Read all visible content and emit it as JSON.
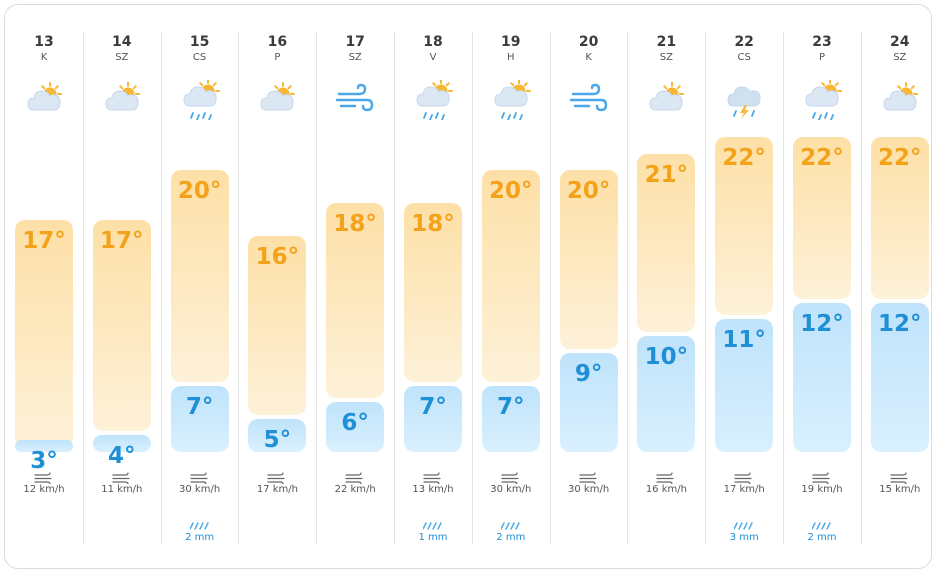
{
  "chart_data": {
    "type": "bar",
    "categories": [
      "13",
      "14",
      "15",
      "16",
      "17",
      "18",
      "19",
      "20",
      "21",
      "22",
      "23",
      "24"
    ],
    "ylim": [
      3,
      22
    ],
    "days": [
      {
        "date": "13",
        "dow": "K",
        "icon": "partly-cloudy-icon",
        "hi": 17,
        "lo": 3,
        "hi_label": "17°",
        "lo_label": "3°",
        "wind": "12 km/h",
        "rain": ""
      },
      {
        "date": "14",
        "dow": "SZ",
        "icon": "partly-cloudy-icon",
        "hi": 17,
        "lo": 4,
        "hi_label": "17°",
        "lo_label": "4°",
        "wind": "11 km/h",
        "rain": ""
      },
      {
        "date": "15",
        "dow": "CS",
        "icon": "rain-icon",
        "hi": 20,
        "lo": 7,
        "hi_label": "20°",
        "lo_label": "7°",
        "wind": "30 km/h",
        "rain": "2 mm"
      },
      {
        "date": "16",
        "dow": "P",
        "icon": "partly-cloudy-icon",
        "hi": 16,
        "lo": 5,
        "hi_label": "16°",
        "lo_label": "5°",
        "wind": "17 km/h",
        "rain": ""
      },
      {
        "date": "17",
        "dow": "SZ",
        "icon": "wind-icon",
        "hi": 18,
        "lo": 6,
        "hi_label": "18°",
        "lo_label": "6°",
        "wind": "22 km/h",
        "rain": ""
      },
      {
        "date": "18",
        "dow": "V",
        "icon": "rain-icon",
        "hi": 18,
        "lo": 7,
        "hi_label": "18°",
        "lo_label": "7°",
        "wind": "13 km/h",
        "rain": "1 mm"
      },
      {
        "date": "19",
        "dow": "H",
        "icon": "rain-icon",
        "hi": 20,
        "lo": 7,
        "hi_label": "20°",
        "lo_label": "7°",
        "wind": "30 km/h",
        "rain": "2 mm"
      },
      {
        "date": "20",
        "dow": "K",
        "icon": "wind-icon",
        "hi": 20,
        "lo": 9,
        "hi_label": "20°",
        "lo_label": "9°",
        "wind": "30 km/h",
        "rain": ""
      },
      {
        "date": "21",
        "dow": "SZ",
        "icon": "partly-cloudy-icon",
        "hi": 21,
        "lo": 10,
        "hi_label": "21°",
        "lo_label": "10°",
        "wind": "16 km/h",
        "rain": ""
      },
      {
        "date": "22",
        "dow": "CS",
        "icon": "thunderstorm-icon",
        "hi": 22,
        "lo": 11,
        "hi_label": "22°",
        "lo_label": "11°",
        "wind": "17 km/h",
        "rain": "3 mm"
      },
      {
        "date": "23",
        "dow": "P",
        "icon": "rain-icon",
        "hi": 22,
        "lo": 12,
        "hi_label": "22°",
        "lo_label": "12°",
        "wind": "19 km/h",
        "rain": "2 mm"
      },
      {
        "date": "24",
        "dow": "SZ",
        "icon": "partly-cloudy-icon",
        "hi": 22,
        "lo": 12,
        "hi_label": "22°",
        "lo_label": "12°",
        "wind": "15 km/h",
        "rain": ""
      }
    ]
  },
  "colors": {
    "hi_text": "#f4a21a",
    "lo_text": "#1f8fd6",
    "hi_bar": "#fde0a7",
    "lo_bar": "#bfe3fb",
    "sun": "#f7b733",
    "cloud": "#dbe8f4",
    "rain": "#4aa8e8"
  }
}
